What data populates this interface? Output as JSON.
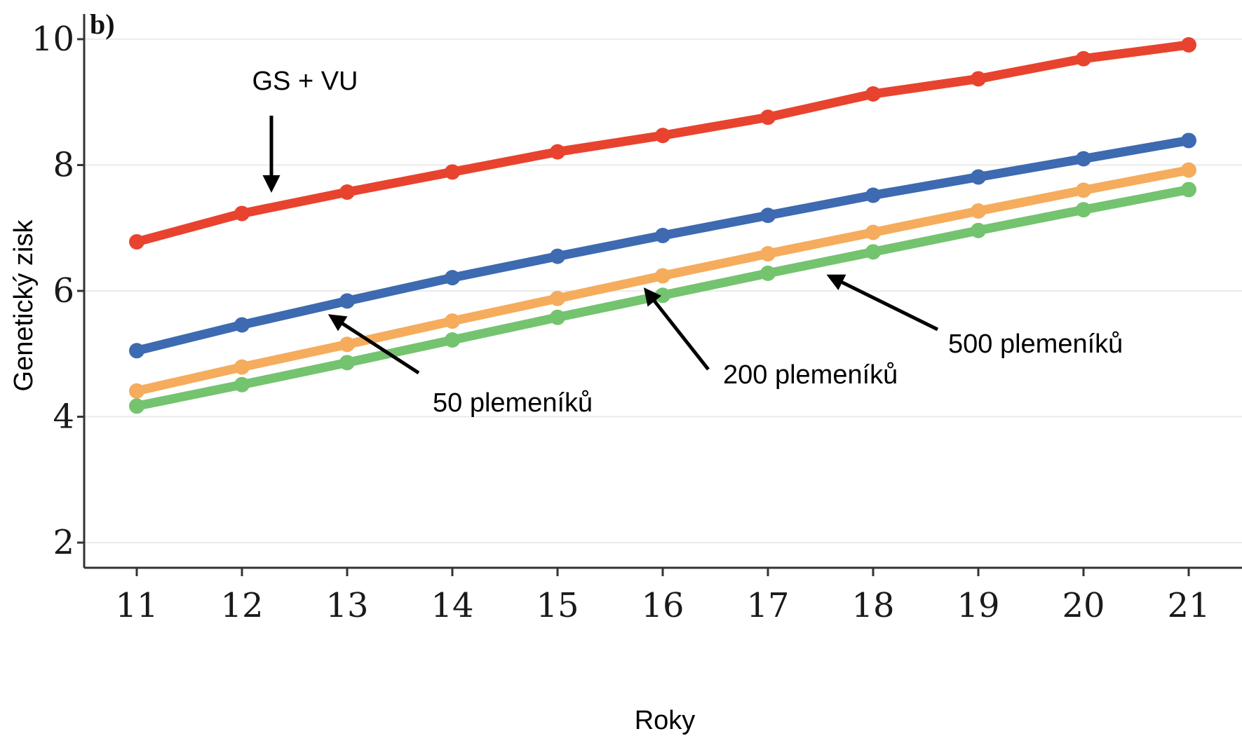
{
  "chart_data": {
    "type": "line",
    "panel_label": "b)",
    "xlabel": "Roky",
    "ylabel": "Genetický zisk",
    "x": [
      11,
      12,
      13,
      14,
      15,
      16,
      17,
      18,
      19,
      20,
      21
    ],
    "xlim": [
      11,
      21
    ],
    "ylim": [
      1.6,
      10.4
    ],
    "yticks": [
      2,
      4,
      6,
      8,
      10
    ],
    "grid": true,
    "series": [
      {
        "name": "GS + VU",
        "color": "#e8432e",
        "values": [
          6.78,
          7.23,
          7.57,
          7.89,
          8.21,
          8.47,
          8.76,
          9.13,
          9.37,
          9.69,
          9.91
        ]
      },
      {
        "name": "50 plemeníků",
        "color": "#3d6ab0",
        "values": [
          5.05,
          5.46,
          5.84,
          6.21,
          6.55,
          6.88,
          7.2,
          7.52,
          7.81,
          8.1,
          8.39
        ]
      },
      {
        "name": "200 plemeníků",
        "color": "#f5ac5c",
        "values": [
          4.41,
          4.79,
          5.15,
          5.52,
          5.88,
          6.24,
          6.59,
          6.93,
          7.27,
          7.6,
          7.92
        ]
      },
      {
        "name": "500 plemeníků",
        "color": "#74c36f",
        "values": [
          4.17,
          4.51,
          4.86,
          5.22,
          5.58,
          5.93,
          6.28,
          6.62,
          6.96,
          7.29,
          7.61
        ]
      }
    ],
    "annotations": [
      "GS + VU",
      "50 plemeníků",
      "200 plemeníků",
      "500 plemeníků"
    ]
  }
}
